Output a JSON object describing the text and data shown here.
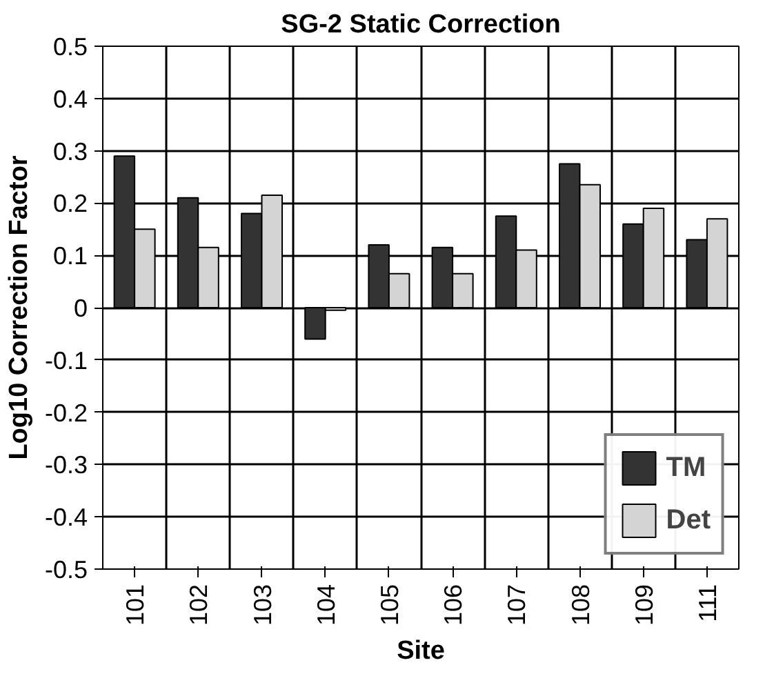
{
  "chart_data": {
    "type": "bar",
    "title": "SG-2 Static Correction",
    "xlabel": "Site",
    "ylabel": "Log10 Correction Factor",
    "categories": [
      "101",
      "102",
      "103",
      "104",
      "105",
      "106",
      "107",
      "108",
      "109",
      "111"
    ],
    "series": [
      {
        "name": "TM",
        "color": "#333333",
        "values": [
          0.29,
          0.21,
          0.18,
          -0.06,
          0.12,
          0.115,
          0.175,
          0.275,
          0.16,
          0.13
        ]
      },
      {
        "name": "Det",
        "color": "#d4d4d4",
        "values": [
          0.15,
          0.115,
          0.215,
          -0.005,
          0.065,
          0.065,
          0.11,
          0.235,
          0.19,
          0.17
        ]
      }
    ],
    "ylim": [
      -0.5,
      0.5
    ],
    "yticks": [
      -0.5,
      -0.4,
      -0.3,
      -0.2,
      -0.1,
      0,
      0.1,
      0.2,
      0.3,
      0.4,
      0.5
    ],
    "grid": true,
    "legend": "bottom right"
  }
}
